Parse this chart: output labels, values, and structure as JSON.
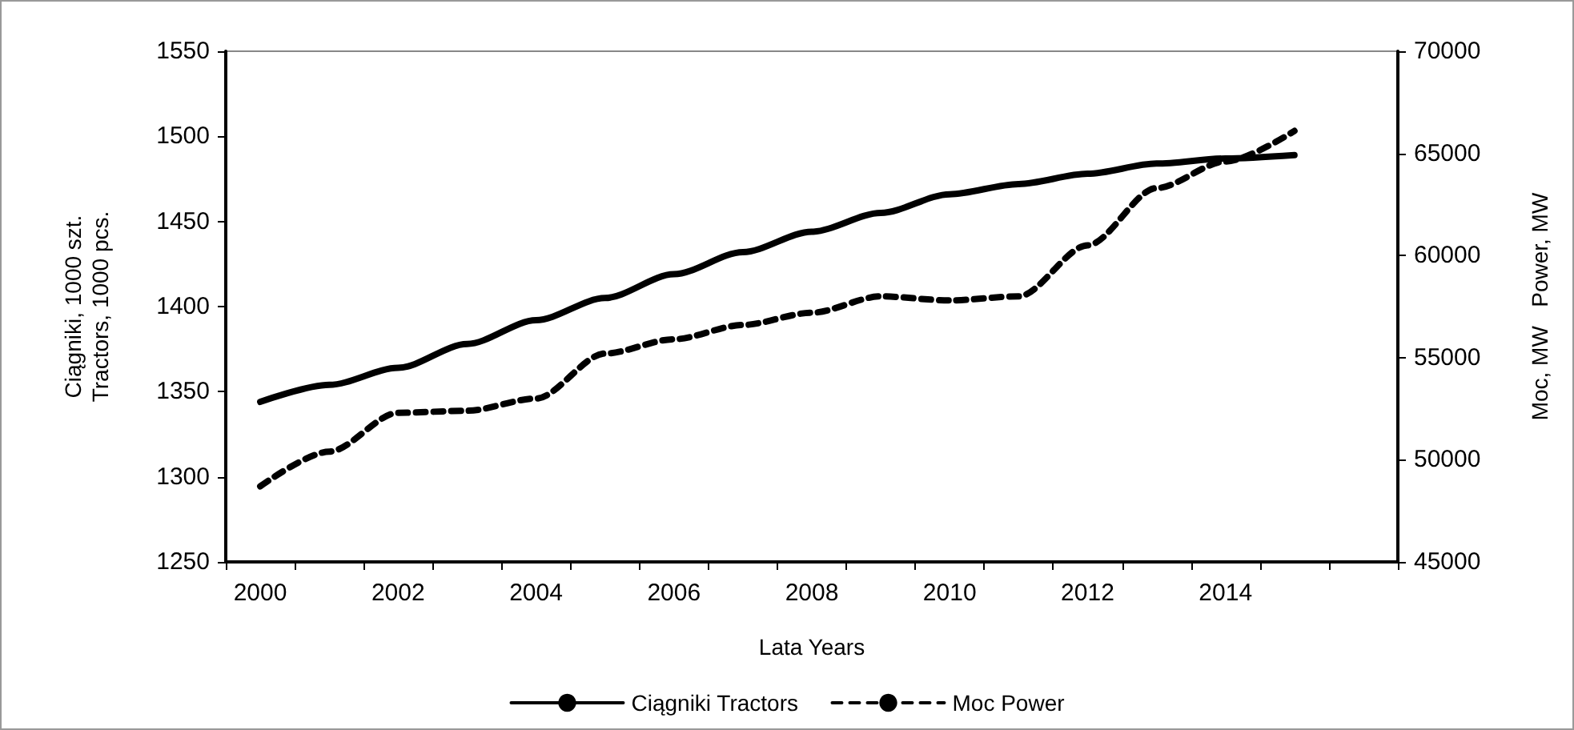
{
  "chart_data": {
    "type": "line",
    "xlabel": "Lata Years",
    "ylabel": "Ciągniki, 1000 szt.\nTractors, 1000 pcs.",
    "y2label": "Moc, MW   Power, MW",
    "categories": [
      "2000",
      null,
      "2002",
      null,
      "2004",
      null,
      "2006",
      null,
      "2008",
      null,
      "2010",
      null,
      "2012",
      null,
      "2014",
      null,
      null
    ],
    "series": [
      {
        "name": "Ciągniki Tractors",
        "color": "#000000",
        "line_style": "solid",
        "values": [
          1344,
          1354,
          1364,
          1378,
          1392,
          1405,
          1419,
          1432,
          1444,
          1455,
          1466,
          1472,
          1478,
          1484,
          1487,
          1489,
          null
        ]
      },
      {
        "name": "Moc Power",
        "color": "#000000",
        "line_style": "dashed",
        "axis": "y2",
        "values": [
          48700,
          50400,
          52300,
          52400,
          53000,
          55200,
          55900,
          56600,
          57200,
          58000,
          57800,
          58000,
          60500,
          63300,
          64600,
          66100,
          null
        ]
      }
    ],
    "ylim": [
      1250,
      1550
    ],
    "yticks": [
      1250,
      1300,
      1350,
      1400,
      1450,
      1500,
      1550
    ],
    "y2lim": [
      45000,
      70000
    ],
    "y2ticks": [
      45000,
      50000,
      55000,
      60000,
      65000,
      70000
    ],
    "grid": false,
    "legend": "bottom"
  }
}
